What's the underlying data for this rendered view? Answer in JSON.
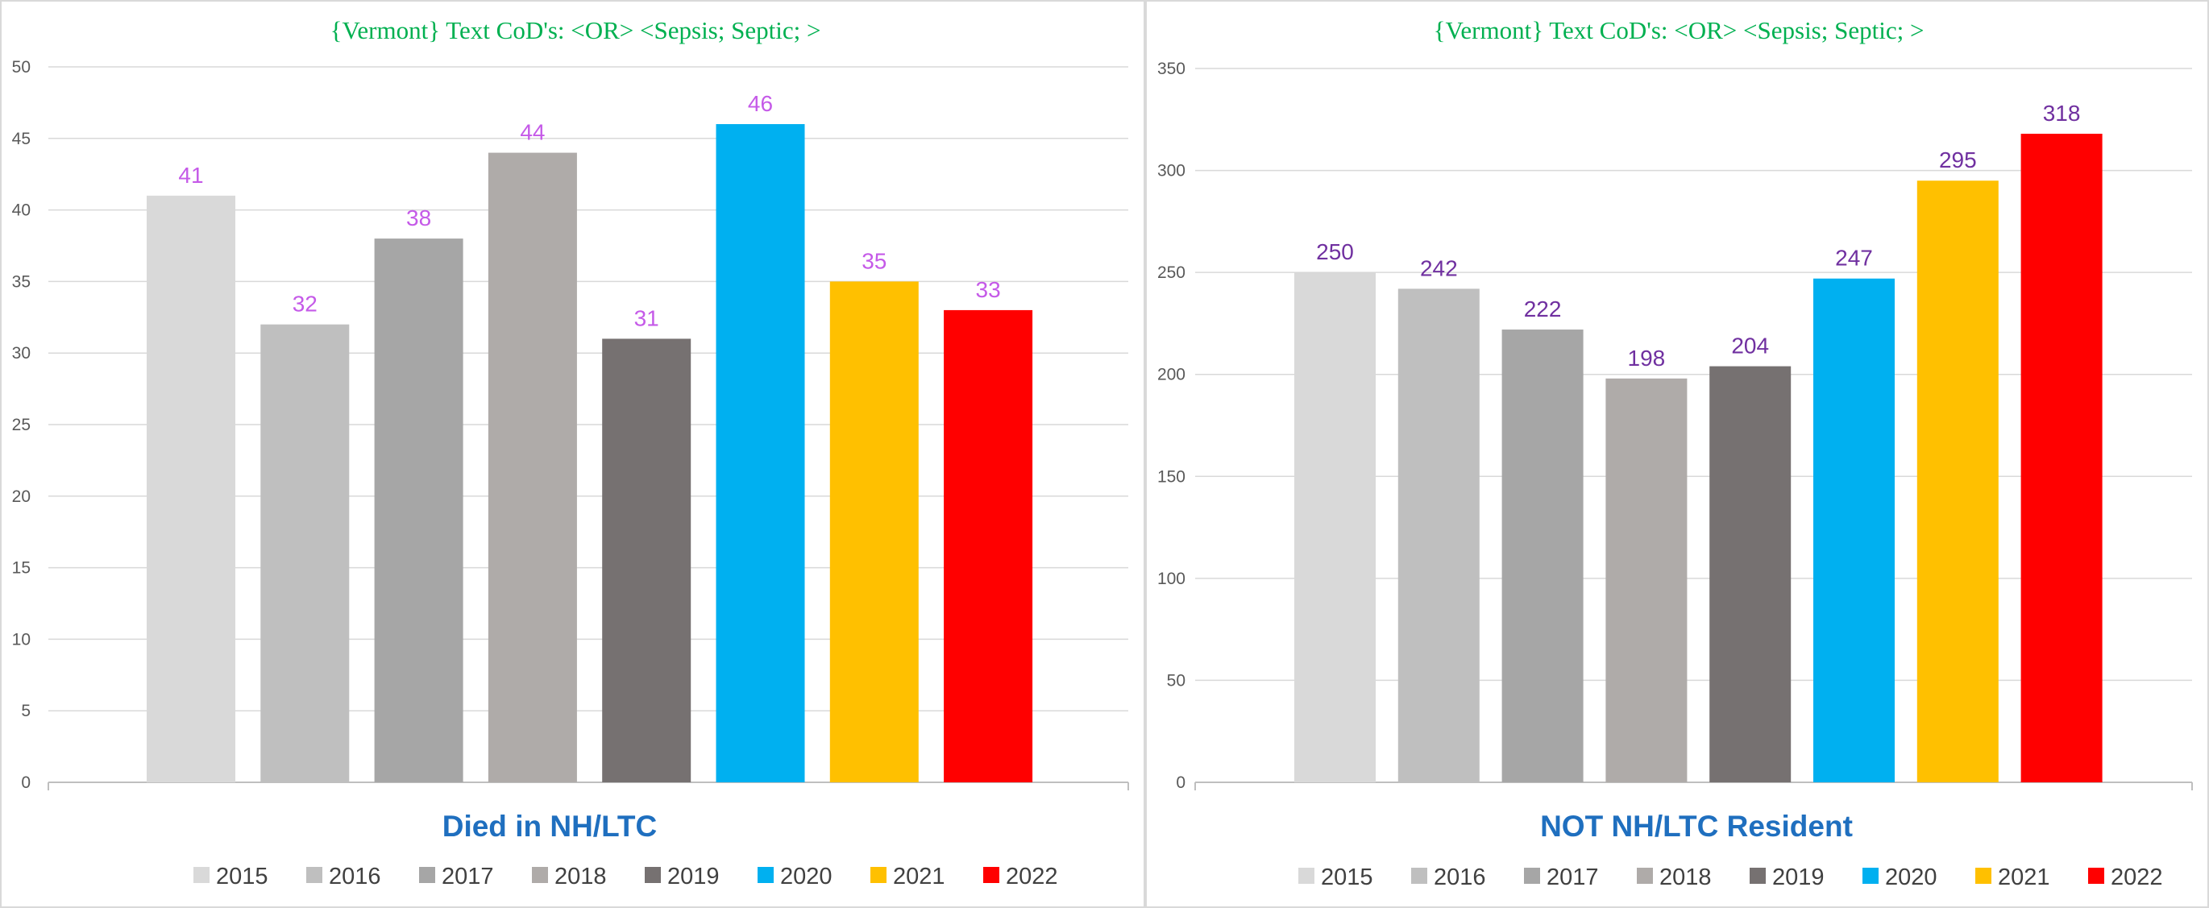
{
  "legend_years": [
    "2015",
    "2016",
    "2017",
    "2018",
    "2019",
    "2020",
    "2021",
    "2022"
  ],
  "colors": [
    "#d9d9d9",
    "#bfbfbf",
    "#a6a6a6",
    "#afaba9",
    "#767171",
    "#00b0f0",
    "#ffc000",
    "#ff0000"
  ],
  "chart_data": [
    {
      "type": "bar",
      "title": "{Vermont}   Text CoD's: <OR> <Sepsis; Septic; >",
      "category_label": "Died  in NH/LTC",
      "ylim": [
        0,
        50
      ],
      "yticks": [
        0,
        5,
        10,
        15,
        20,
        25,
        30,
        35,
        40,
        45,
        50
      ],
      "series": [
        {
          "name": "2015",
          "values": [
            41
          ]
        },
        {
          "name": "2016",
          "values": [
            32
          ]
        },
        {
          "name": "2017",
          "values": [
            38
          ]
        },
        {
          "name": "2018",
          "values": [
            44
          ]
        },
        {
          "name": "2019",
          "values": [
            31
          ]
        },
        {
          "name": "2020",
          "values": [
            46
          ]
        },
        {
          "name": "2021",
          "values": [
            35
          ]
        },
        {
          "name": "2022",
          "values": [
            33
          ]
        }
      ],
      "data_label_color": "#c55ae8",
      "grid": true,
      "legend": "bottom"
    },
    {
      "type": "bar",
      "title": "{Vermont}   Text CoD's: <OR> <Sepsis; Septic; >",
      "category_label": "NOT NH/LTC Resident",
      "ylim": [
        0,
        350
      ],
      "yticks": [
        0,
        50,
        100,
        150,
        200,
        250,
        300,
        350
      ],
      "series": [
        {
          "name": "2015",
          "values": [
            250
          ]
        },
        {
          "name": "2016",
          "values": [
            242
          ]
        },
        {
          "name": "2017",
          "values": [
            222
          ]
        },
        {
          "name": "2018",
          "values": [
            198
          ]
        },
        {
          "name": "2019",
          "values": [
            204
          ]
        },
        {
          "name": "2020",
          "values": [
            247
          ]
        },
        {
          "name": "2021",
          "values": [
            295
          ]
        },
        {
          "name": "2022",
          "values": [
            318
          ]
        }
      ],
      "data_label_color": "#7030a0",
      "grid": true,
      "legend": "bottom"
    }
  ]
}
